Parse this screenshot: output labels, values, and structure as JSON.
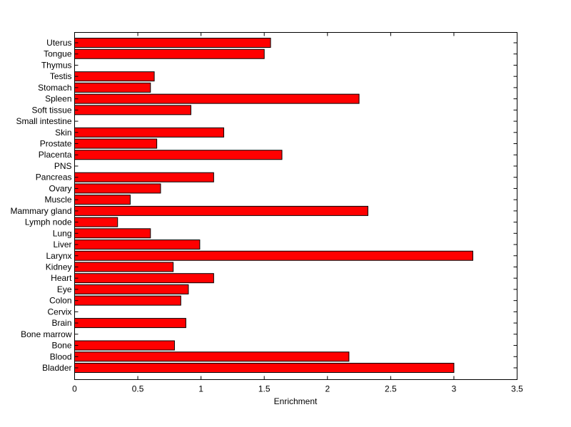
{
  "chart_data": {
    "type": "bar",
    "orientation": "horizontal",
    "title": "",
    "xlabel": "Enrichment",
    "ylabel": "",
    "xlim": [
      0,
      3.5
    ],
    "xticks": [
      0,
      0.5,
      1,
      1.5,
      2,
      2.5,
      3,
      3.5
    ],
    "xtick_labels": [
      "0",
      "0.5",
      "1",
      "1.5",
      "2",
      "2.5",
      "3",
      "3.5"
    ],
    "grid": false,
    "bar_color": "#ff0000",
    "edge_color": "#000000",
    "categories": [
      "Bladder",
      "Blood",
      "Bone",
      "Bone marrow",
      "Brain",
      "Cervix",
      "Colon",
      "Eye",
      "Heart",
      "Kidney",
      "Larynx",
      "Liver",
      "Lung",
      "Lymph node",
      "Mammary gland",
      "Muscle",
      "Ovary",
      "Pancreas",
      "PNS",
      "Placenta",
      "Prostate",
      "Skin",
      "Small intestine",
      "Soft tissue",
      "Spleen",
      "Stomach",
      "Testis",
      "Thymus",
      "Tongue",
      "Uterus"
    ],
    "values": [
      3.0,
      2.17,
      0.79,
      0,
      0.88,
      0,
      0.84,
      0.9,
      1.1,
      0.78,
      3.15,
      0.99,
      0.6,
      0.34,
      2.32,
      0.44,
      0.68,
      1.1,
      0,
      1.64,
      0.65,
      1.18,
      0,
      0.92,
      2.25,
      0.6,
      0.63,
      0,
      1.5,
      1.55
    ]
  }
}
